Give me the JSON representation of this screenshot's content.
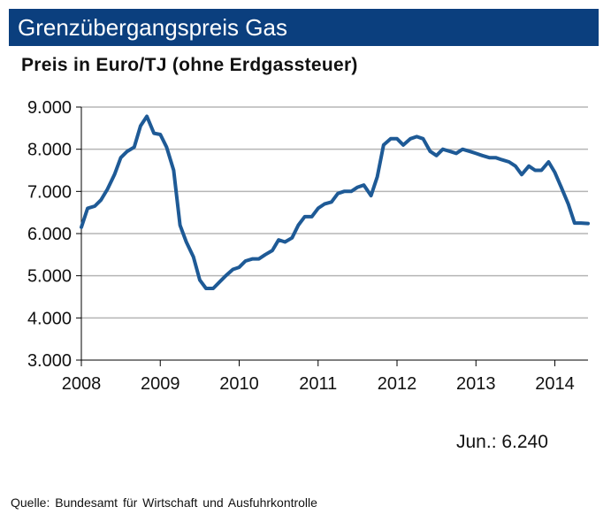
{
  "title": "Grenzübergangspreis Gas",
  "subtitle": "Preis in Euro/TJ (ohne Erdgassteuer)",
  "latest_value_label": "Jun.: 6.240",
  "source": "Quelle:  Bundesamt   für  Wirtschaft  und  Ausfuhrkontrolle",
  "colors": {
    "title_bg": "#0b3f7e",
    "line": "#1e5a96",
    "grid": "#b5b5b5",
    "axis": "#000000"
  },
  "chart_data": {
    "type": "line",
    "title": "Grenzübergangspreis Gas",
    "ylabel": "Preis in Euro/TJ (ohne Erdgassteuer)",
    "xlabel": "",
    "ylim": [
      3000,
      9000
    ],
    "xlim": [
      2008.0,
      2014.42
    ],
    "grid": true,
    "y_ticks": [
      3000,
      4000,
      5000,
      6000,
      7000,
      8000,
      9000
    ],
    "y_tick_labels": [
      "3.000",
      "4.000",
      "5.000",
      "6.000",
      "7.000",
      "8.000",
      "9.000"
    ],
    "x_ticks": [
      2008,
      2009,
      2010,
      2011,
      2012,
      2013,
      2014
    ],
    "x_tick_labels": [
      "2008",
      "2009",
      "2010",
      "2011",
      "2012",
      "2013",
      "2014"
    ],
    "series": [
      {
        "name": "Grenzübergangspreis Gas",
        "x": [
          2008.0,
          2008.08,
          2008.17,
          2008.25,
          2008.33,
          2008.42,
          2008.5,
          2008.58,
          2008.67,
          2008.75,
          2008.83,
          2008.92,
          2009.0,
          2009.08,
          2009.17,
          2009.25,
          2009.33,
          2009.42,
          2009.5,
          2009.58,
          2009.67,
          2009.75,
          2009.83,
          2009.92,
          2010.0,
          2010.08,
          2010.17,
          2010.25,
          2010.33,
          2010.42,
          2010.5,
          2010.58,
          2010.67,
          2010.75,
          2010.83,
          2010.92,
          2011.0,
          2011.08,
          2011.17,
          2011.25,
          2011.33,
          2011.42,
          2011.5,
          2011.58,
          2011.67,
          2011.75,
          2011.83,
          2011.92,
          2012.0,
          2012.08,
          2012.17,
          2012.25,
          2012.33,
          2012.42,
          2012.5,
          2012.58,
          2012.67,
          2012.75,
          2012.83,
          2012.92,
          2013.0,
          2013.08,
          2013.17,
          2013.25,
          2013.33,
          2013.42,
          2013.5,
          2013.58,
          2013.67,
          2013.75,
          2013.83,
          2013.92,
          2014.0,
          2014.08,
          2014.17,
          2014.25,
          2014.33,
          2014.42
        ],
        "values": [
          6150,
          6600,
          6650,
          6800,
          7050,
          7400,
          7800,
          7950,
          8050,
          8550,
          8780,
          8380,
          8350,
          8050,
          7500,
          6200,
          5800,
          5450,
          4900,
          4700,
          4700,
          4850,
          5000,
          5150,
          5200,
          5350,
          5400,
          5400,
          5500,
          5600,
          5850,
          5800,
          5900,
          6200,
          6400,
          6400,
          6600,
          6700,
          6750,
          6950,
          7000,
          7000,
          7100,
          7150,
          6900,
          7350,
          8100,
          8250,
          8250,
          8100,
          8250,
          8300,
          8250,
          7950,
          7850,
          8000,
          7950,
          7900,
          8000,
          7950,
          7900,
          7850,
          7800,
          7800,
          7750,
          7700,
          7600,
          7400,
          7600,
          7500,
          7500,
          7700,
          7450,
          7100,
          6700,
          6250,
          6250,
          6240
        ]
      }
    ]
  }
}
